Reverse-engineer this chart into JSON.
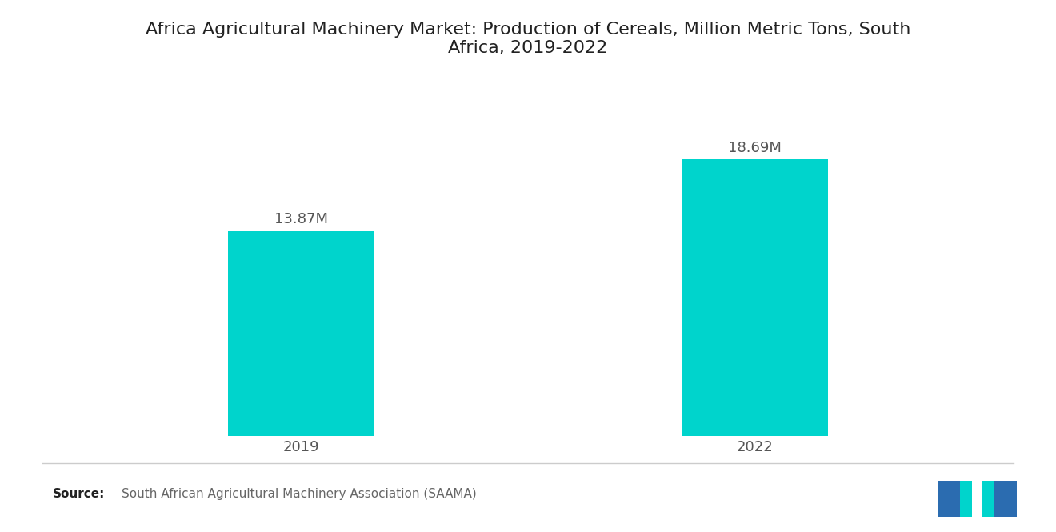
{
  "title_line1": "Africa Agricultural Machinery Market: Production of Cereals, Million Metric Tons, South",
  "title_line2": "Africa, 2019-2022",
  "categories": [
    "2019",
    "2022"
  ],
  "values": [
    13.87,
    18.69
  ],
  "labels": [
    "13.87M",
    "18.69M"
  ],
  "bar_color": "#00D4CC",
  "background_color": "#ffffff",
  "source_text": "South African Agricultural Machinery Association (SAAMA)",
  "source_label": "Source:",
  "bar_width": 0.32,
  "x_positions": [
    1,
    2
  ],
  "xlim": [
    0.5,
    2.5
  ],
  "ylim": [
    0,
    23
  ],
  "title_fontsize": 16,
  "label_fontsize": 13,
  "tick_fontsize": 13,
  "source_fontsize": 11
}
